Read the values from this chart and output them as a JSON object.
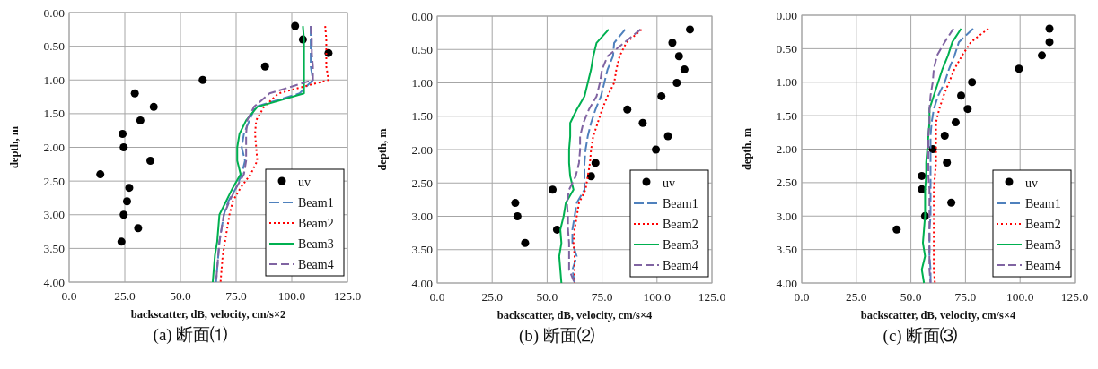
{
  "chart_data": [
    {
      "type": "line",
      "title": "(a) 断面⑴",
      "xlabel": "backscatter, dB, velocity, cm/s×2",
      "ylabel": "depth, m",
      "xlim": [
        0,
        125
      ],
      "ylim": [
        4,
        0
      ],
      "xticks": [
        {
          "value": 0,
          "label": "0.0"
        },
        {
          "value": 25,
          "label": "25.0"
        },
        {
          "value": 50,
          "label": "50.0"
        },
        {
          "value": 75,
          "label": "75.0"
        },
        {
          "value": 100,
          "label": "100.0"
        },
        {
          "value": 125,
          "label": "125.0"
        }
      ],
      "yticks": [
        {
          "value": 0,
          "label": "0.00"
        },
        {
          "value": 0.5,
          "label": "0.50"
        },
        {
          "value": 1,
          "label": "1.00"
        },
        {
          "value": 1.5,
          "label": "1.50"
        },
        {
          "value": 2,
          "label": "2.00"
        },
        {
          "value": 2.5,
          "label": "2.50"
        },
        {
          "value": 3,
          "label": "3.00"
        },
        {
          "value": 3.5,
          "label": "3.50"
        },
        {
          "value": 4,
          "label": "4.00"
        }
      ],
      "grid": true,
      "legend": "bottom right",
      "series": [
        {
          "name": "uv",
          "type": "scatter",
          "marker": "circle",
          "color": "#000000",
          "x": [
            101.5,
            105,
            116.5,
            88,
            60,
            29.5,
            38,
            32,
            24,
            24.5,
            36.5,
            14,
            27,
            26,
            24.5,
            31,
            23.5
          ],
          "values": [
            0.2,
            0.4,
            0.6,
            0.8,
            1.0,
            1.2,
            1.4,
            1.6,
            1.8,
            2.0,
            2.2,
            2.4,
            2.6,
            2.8,
            3.0,
            3.2,
            3.4
          ]
        },
        {
          "name": "Beam1",
          "line_style": "dashed",
          "color": "#4f81bd",
          "x": [
            108.5,
            108.5,
            108.5,
            108.5,
            109.5,
            103.5,
            83.5,
            81,
            78.5,
            77.5,
            79,
            77.5,
            75,
            71.5,
            69.5,
            68.5,
            67.5,
            67,
            66.5,
            66
          ],
          "values": [
            0.2,
            0.4,
            0.6,
            0.8,
            1.0,
            1.2,
            1.4,
            1.6,
            1.8,
            2.0,
            2.2,
            2.4,
            2.6,
            2.8,
            3.0,
            3.2,
            3.4,
            3.6,
            3.8,
            4.0
          ]
        },
        {
          "name": "Beam2",
          "line_style": "dotted",
          "color": "#ff0000",
          "x": [
            115,
            115.5,
            115.5,
            115.5,
            116.5,
            94,
            87.5,
            84,
            83.5,
            84,
            84.5,
            81.5,
            77,
            73.5,
            72,
            71,
            70,
            69,
            68.5,
            68
          ],
          "values": [
            0.2,
            0.4,
            0.6,
            0.8,
            1.0,
            1.2,
            1.4,
            1.6,
            1.8,
            2.0,
            2.2,
            2.4,
            2.6,
            2.8,
            3.0,
            3.2,
            3.4,
            3.6,
            3.8,
            4.0
          ]
        },
        {
          "name": "Beam3",
          "line_style": "solid",
          "color": "#00b050",
          "x": [
            105,
            105.5,
            105.5,
            105.5,
            105.5,
            105.5,
            84.5,
            79.5,
            76.5,
            75.5,
            75.5,
            77,
            73.5,
            70.5,
            67.5,
            67,
            66.5,
            65.5,
            65,
            64.5
          ],
          "values": [
            0.2,
            0.4,
            0.6,
            0.8,
            1.0,
            1.2,
            1.4,
            1.6,
            1.8,
            2.0,
            2.2,
            2.4,
            2.6,
            2.8,
            3.0,
            3.2,
            3.4,
            3.6,
            3.8,
            4.0
          ]
        },
        {
          "name": "Beam4",
          "line_style": "dashed",
          "color": "#8064a2",
          "x": [
            108.5,
            109,
            109,
            109.5,
            109.5,
            90,
            83,
            80,
            79.5,
            79.5,
            79.5,
            78.5,
            75,
            72,
            69.5,
            68.5,
            67.5,
            67,
            66.5,
            66
          ],
          "values": [
            0.2,
            0.4,
            0.6,
            0.8,
            1.0,
            1.2,
            1.4,
            1.6,
            1.8,
            2.0,
            2.2,
            2.4,
            2.6,
            2.8,
            3.0,
            3.2,
            3.4,
            3.6,
            3.8,
            4.0
          ]
        }
      ]
    },
    {
      "type": "line",
      "title": "(b) 断面⑵",
      "xlabel": "backscatter, dB, velocity, cm/s×4",
      "ylabel": "depth, m",
      "xlim": [
        0,
        125
      ],
      "ylim": [
        4,
        0
      ],
      "xticks": [
        {
          "value": 0,
          "label": "0.0"
        },
        {
          "value": 25,
          "label": "25.0"
        },
        {
          "value": 50,
          "label": "50.0"
        },
        {
          "value": 75,
          "label": "75.0"
        },
        {
          "value": 100,
          "label": "100.0"
        },
        {
          "value": 125,
          "label": "125.0"
        }
      ],
      "yticks": [
        {
          "value": 0,
          "label": "0.00"
        },
        {
          "value": 0.5,
          "label": "0.50"
        },
        {
          "value": 1,
          "label": "1.00"
        },
        {
          "value": 1.5,
          "label": "1.50"
        },
        {
          "value": 2,
          "label": "2.00"
        },
        {
          "value": 2.5,
          "label": "2.50"
        },
        {
          "value": 3,
          "label": "3.00"
        },
        {
          "value": 3.5,
          "label": "3.50"
        },
        {
          "value": 4,
          "label": "4.00"
        }
      ],
      "grid": true,
      "legend": "bottom right",
      "series": [
        {
          "name": "uv",
          "type": "scatter",
          "marker": "circle",
          "color": "#000000",
          "x": [
            115,
            107,
            110,
            112.5,
            109,
            102,
            86.5,
            93.5,
            105,
            99.5,
            72,
            70,
            52.5,
            35.5,
            36.5,
            54.5,
            40
          ],
          "values": [
            0.2,
            0.4,
            0.6,
            0.8,
            1.0,
            1.2,
            1.4,
            1.6,
            1.8,
            2.0,
            2.2,
            2.4,
            2.6,
            2.8,
            3.0,
            3.2,
            3.4
          ]
        },
        {
          "name": "Beam1",
          "line_style": "dashed",
          "color": "#4f81bd",
          "x": [
            85.5,
            80.5,
            80,
            77.5,
            76,
            74.5,
            72,
            70,
            68.5,
            67.5,
            67,
            67,
            67,
            63.5,
            62.5,
            61.5,
            61.5,
            63.5,
            61.5,
            62.5
          ],
          "values": [
            0.2,
            0.4,
            0.6,
            0.8,
            1.0,
            1.2,
            1.4,
            1.6,
            1.8,
            2.0,
            2.2,
            2.4,
            2.6,
            2.8,
            3.0,
            3.2,
            3.4,
            3.6,
            3.8,
            4.0
          ]
        },
        {
          "name": "Beam2",
          "line_style": "dotted",
          "color": "#ff0000",
          "x": [
            93,
            86,
            83,
            81.5,
            80.5,
            77.5,
            75,
            73,
            71,
            70,
            69.5,
            68.5,
            67.5,
            64.5,
            63.5,
            62.5,
            62,
            62.5,
            62.5,
            62.5
          ],
          "values": [
            0.2,
            0.4,
            0.6,
            0.8,
            1.0,
            1.2,
            1.4,
            1.6,
            1.8,
            2.0,
            2.2,
            2.4,
            2.6,
            2.8,
            3.0,
            3.2,
            3.4,
            3.6,
            3.8,
            4.0
          ]
        },
        {
          "name": "Beam3",
          "line_style": "solid",
          "color": "#00b050",
          "x": [
            78,
            72.5,
            71,
            70,
            68.5,
            67,
            63.5,
            60.5,
            60.5,
            60,
            60,
            60.5,
            62,
            58.5,
            57.5,
            56,
            56.5,
            55.5,
            56,
            56.5
          ],
          "values": [
            0.2,
            0.4,
            0.6,
            0.8,
            1.0,
            1.2,
            1.4,
            1.6,
            1.8,
            2.0,
            2.2,
            2.4,
            2.6,
            2.8,
            3.0,
            3.2,
            3.4,
            3.6,
            3.8,
            4.0
          ]
        },
        {
          "name": "Beam4",
          "line_style": "dashed",
          "color": "#8064a2",
          "x": [
            92.5,
            85,
            77.5,
            75,
            74,
            72.5,
            69,
            66.5,
            65,
            65,
            64.5,
            63,
            60,
            59,
            59.5,
            59.5,
            60,
            60,
            60,
            62.5
          ],
          "values": [
            0.2,
            0.4,
            0.6,
            0.8,
            1.0,
            1.2,
            1.4,
            1.6,
            1.8,
            2.0,
            2.2,
            2.4,
            2.6,
            2.8,
            3.0,
            3.2,
            3.4,
            3.6,
            3.8,
            4.0
          ]
        }
      ]
    },
    {
      "type": "line",
      "title": "(c) 断面⑶",
      "xlabel": "backscatter, dB, velocity, cm/s×4",
      "ylabel": "depth, m",
      "xlim": [
        0,
        125
      ],
      "ylim": [
        4,
        0
      ],
      "xticks": [
        {
          "value": 0,
          "label": "0.0"
        },
        {
          "value": 25,
          "label": "25.0"
        },
        {
          "value": 50,
          "label": "50.0"
        },
        {
          "value": 75,
          "label": "75.0"
        },
        {
          "value": 100,
          "label": "100.0"
        },
        {
          "value": 125,
          "label": "125.0"
        }
      ],
      "yticks": [
        {
          "value": 0,
          "label": "0.00"
        },
        {
          "value": 0.5,
          "label": "0.50"
        },
        {
          "value": 1,
          "label": "1.00"
        },
        {
          "value": 1.5,
          "label": "1.50"
        },
        {
          "value": 2,
          "label": "2.00"
        },
        {
          "value": 2.5,
          "label": "2.50"
        },
        {
          "value": 3,
          "label": "3.00"
        },
        {
          "value": 3.5,
          "label": "3.50"
        },
        {
          "value": 4,
          "label": "4.00"
        }
      ],
      "grid": true,
      "legend": "bottom right",
      "series": [
        {
          "name": "uv",
          "type": "scatter",
          "marker": "circle",
          "color": "#000000",
          "x": [
            113.5,
            113.5,
            110,
            99.5,
            78,
            73,
            76,
            70.5,
            65.5,
            60,
            66.5,
            55,
            55,
            68.5,
            56.5,
            43.5
          ],
          "values": [
            0.2,
            0.4,
            0.6,
            0.8,
            1.0,
            1.2,
            1.4,
            1.6,
            1.8,
            2.0,
            2.2,
            2.4,
            2.6,
            2.8,
            3.0,
            3.2
          ]
        },
        {
          "name": "Beam1",
          "line_style": "dashed",
          "color": "#4f81bd",
          "x": [
            78.5,
            72,
            70,
            67.5,
            65.5,
            62.5,
            60.5,
            59.5,
            59,
            59,
            59,
            59,
            59,
            59,
            59,
            58.5,
            58.5,
            58.5,
            59,
            59
          ],
          "values": [
            0.2,
            0.4,
            0.6,
            0.8,
            1.0,
            1.2,
            1.4,
            1.6,
            1.8,
            2.0,
            2.2,
            2.4,
            2.6,
            2.8,
            3.0,
            3.2,
            3.4,
            3.6,
            3.8,
            4.0
          ]
        },
        {
          "name": "Beam2",
          "line_style": "dotted",
          "color": "#ff0000",
          "x": [
            85.5,
            77.5,
            73.5,
            70,
            67.5,
            65,
            63,
            61.5,
            61.5,
            61.5,
            61.5,
            61,
            60.5,
            60.5,
            60.5,
            60.5,
            60.5,
            60.5,
            60.5,
            61
          ],
          "values": [
            0.2,
            0.4,
            0.6,
            0.8,
            1.0,
            1.2,
            1.4,
            1.6,
            1.8,
            2.0,
            2.2,
            2.4,
            2.6,
            2.8,
            3.0,
            3.2,
            3.4,
            3.6,
            3.8,
            4.0
          ]
        },
        {
          "name": "Beam3",
          "line_style": "solid",
          "color": "#00b050",
          "x": [
            73,
            69,
            67,
            64.5,
            62.5,
            60.5,
            58.5,
            58.5,
            58,
            57.5,
            57,
            57,
            56.5,
            56.5,
            56.5,
            56,
            55.5,
            56.5,
            55,
            56
          ],
          "values": [
            0.2,
            0.4,
            0.6,
            0.8,
            1.0,
            1.2,
            1.4,
            1.6,
            1.8,
            2.0,
            2.2,
            2.4,
            2.6,
            2.8,
            3.0,
            3.2,
            3.4,
            3.6,
            3.8,
            4.0
          ]
        },
        {
          "name": "Beam4",
          "line_style": "dashed",
          "color": "#8064a2",
          "x": [
            69.5,
            65.5,
            62,
            60.5,
            60,
            59,
            58.5,
            58.5,
            58,
            58,
            58,
            58,
            58.5,
            58.5,
            58.5,
            58.5,
            58.5,
            58.5,
            58.5,
            59
          ],
          "values": [
            0.2,
            0.4,
            0.6,
            0.8,
            1.0,
            1.2,
            1.4,
            1.6,
            1.8,
            2.0,
            2.2,
            2.4,
            2.6,
            2.8,
            3.0,
            3.2,
            3.4,
            3.6,
            3.8,
            4.0
          ]
        }
      ]
    }
  ]
}
